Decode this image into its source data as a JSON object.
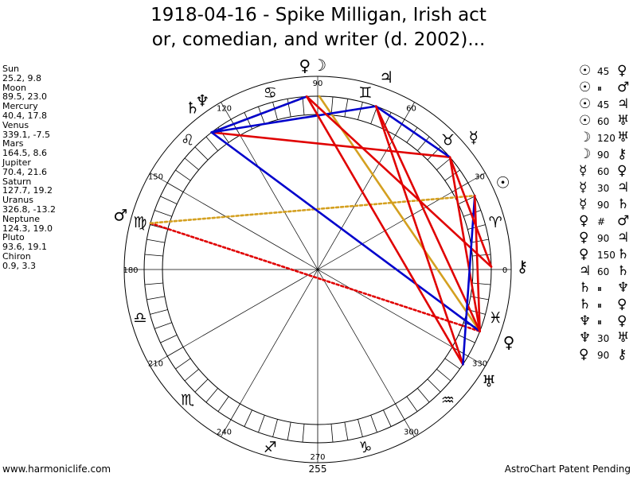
{
  "title": "1918-04-16 - Spike Milligan, Irish act\nor, comedian, and writer (d. 2002)...",
  "planets": [
    {
      "name": "Sun",
      "glyph": "☉",
      "lon": 25.2,
      "lat": 9.8,
      "coords": "25.2, 9.8"
    },
    {
      "name": "Moon",
      "glyph": "☽",
      "lon": 89.5,
      "lat": 23.0,
      "coords": "89.5, 23.0"
    },
    {
      "name": "Mercury",
      "glyph": "☿",
      "lon": 40.4,
      "lat": 17.8,
      "coords": "40.4, 17.8"
    },
    {
      "name": "Venus",
      "glyph": "♀",
      "lon": 339.1,
      "lat": -7.5,
      "coords": "339.1, -7.5"
    },
    {
      "name": "Mars",
      "glyph": "♂",
      "lon": 164.5,
      "lat": 8.6,
      "coords": "164.5, 8.6"
    },
    {
      "name": "Jupiter",
      "glyph": "♃",
      "lon": 70.4,
      "lat": 21.6,
      "coords": "70.4, 21.6"
    },
    {
      "name": "Saturn",
      "glyph": "♄",
      "lon": 127.7,
      "lat": 19.2,
      "coords": "127.7, 19.2"
    },
    {
      "name": "Uranus",
      "glyph": "♅",
      "lon": 326.8,
      "lat": -13.2,
      "coords": "326.8, -13.2"
    },
    {
      "name": "Neptune",
      "glyph": "♆",
      "lon": 124.3,
      "lat": 19.0,
      "coords": "124.3, 19.0"
    },
    {
      "name": "Pluto",
      "glyph": "♀",
      "lon": 93.6,
      "lat": 19.1,
      "coords": "93.6, 19.1"
    },
    {
      "name": "Chiron",
      "glyph": "⚷",
      "lon": 0.9,
      "lat": 3.3,
      "coords": "0.9, 3.3"
    }
  ],
  "aspects": [
    {
      "p1": "Sun",
      "p2": "Pluto",
      "g1": "☉",
      "aspect": "45",
      "g2": "♀",
      "color": "#0000ff"
    },
    {
      "p1": "Sun",
      "p2": "Mars",
      "g1": "☉",
      "aspect": "⏸",
      "g2": "♂",
      "color": "#e8a000"
    },
    {
      "p1": "Sun",
      "p2": "Jupiter",
      "g1": "☉",
      "aspect": "45",
      "g2": "♃",
      "color": "#0000ff"
    },
    {
      "p1": "Sun",
      "p2": "Uranus",
      "g1": "☉",
      "aspect": "60",
      "g2": "♅",
      "color": "#0000ff"
    },
    {
      "p1": "Moon",
      "p2": "Uranus",
      "g1": "☽",
      "aspect": "120",
      "g2": "♅",
      "color": "#0000ff"
    },
    {
      "p1": "Moon",
      "p2": "Chiron",
      "g1": "☽",
      "aspect": "90",
      "g2": "⚷",
      "color": "#ff0000"
    },
    {
      "p1": "Mercury",
      "p2": "Pluto",
      "g1": "☿",
      "aspect": "60",
      "g2": "♀",
      "color": "#0000ff"
    },
    {
      "p1": "Mercury",
      "p2": "Jupiter",
      "g1": "☿",
      "aspect": "30",
      "g2": "♃",
      "color": "#0000ff"
    },
    {
      "p1": "Mercury",
      "p2": "Saturn",
      "g1": "☿",
      "aspect": "90",
      "g2": "♄",
      "color": "#ff0000"
    },
    {
      "p1": "Venus",
      "p2": "Mars",
      "g1": "♀",
      "aspect": "#",
      "g2": "♂",
      "color": "#ff0000"
    },
    {
      "p1": "Venus",
      "p2": "Jupiter",
      "g1": "♀",
      "aspect": "90",
      "g2": "♃",
      "color": "#ff0000"
    },
    {
      "p1": "Venus",
      "p2": "Saturn",
      "g1": "♀",
      "aspect": "150",
      "g2": "♄",
      "color": "#0000ff"
    },
    {
      "p1": "Jupiter",
      "p2": "Saturn",
      "g1": "♃",
      "aspect": "60",
      "g2": "♄",
      "color": "#0000ff"
    },
    {
      "p1": "Saturn",
      "p2": "Neptune",
      "g1": "♄",
      "aspect": "⏸",
      "g2": "♆",
      "color": "#e8a000"
    },
    {
      "p1": "Saturn",
      "p2": "Pluto",
      "g1": "♄",
      "aspect": "⏸",
      "g2": "♀",
      "color": "#e8a000"
    },
    {
      "p1": "Neptune",
      "p2": "Pluto",
      "g1": "♆",
      "aspect": "⏸",
      "g2": "♀",
      "color": "#e8a000"
    },
    {
      "p1": "Neptune",
      "p2": "Uranus",
      "g1": "♆",
      "aspect": "30",
      "g2": "♅",
      "color": "#0000ff"
    },
    {
      "p1": "Pluto",
      "p2": "Chiron",
      "g1": "♀",
      "aspect": "90",
      "g2": "⚷",
      "color": "#ff0000"
    }
  ],
  "chart_lines": [
    {
      "from": "Moon",
      "to": "Venus",
      "color": "#d4a020",
      "style": "solid"
    },
    {
      "from": "Mars",
      "to": "Venus",
      "color": "#e00000",
      "style": "dotted"
    },
    {
      "from": "Mars",
      "to": "Sun",
      "color": "#d4a020",
      "style": "dotted"
    },
    {
      "from": "Saturn",
      "to": "Pluto",
      "color": "#d4a020",
      "style": "dotted"
    },
    {
      "from": "Saturn",
      "to": "Mercury",
      "color": "#e00000",
      "style": "solid"
    },
    {
      "from": "Saturn",
      "to": "Jupiter",
      "color": "#0000cc",
      "style": "solid"
    },
    {
      "from": "Saturn",
      "to": "Venus",
      "color": "#0000cc",
      "style": "solid"
    },
    {
      "from": "Pluto",
      "to": "Saturn",
      "color": "#0000cc",
      "style": "solid"
    },
    {
      "from": "Pluto",
      "to": "Chiron",
      "color": "#e00000",
      "style": "solid"
    },
    {
      "from": "Jupiter",
      "to": "Mercury",
      "color": "#0000cc",
      "style": "solid"
    },
    {
      "from": "Jupiter",
      "to": "Venus",
      "color": "#e00000",
      "style": "solid"
    },
    {
      "from": "Jupiter",
      "to": "Uranus",
      "color": "#e00000",
      "style": "solid"
    },
    {
      "from": "Pluto",
      "to": "Uranus",
      "color": "#e00000",
      "style": "solid"
    },
    {
      "from": "Mercury",
      "to": "Venus",
      "color": "#e00000",
      "style": "solid"
    },
    {
      "from": "Sun",
      "to": "Uranus",
      "color": "#0000cc",
      "style": "solid"
    },
    {
      "from": "Sun",
      "to": "Venus",
      "color": "#e00000",
      "style": "solid"
    },
    {
      "from": "Mercury",
      "to": "Chiron",
      "color": "#e00000",
      "style": "solid"
    }
  ],
  "chart_data": {
    "type": "astrological chart wheel",
    "date": "1918-04-16",
    "subject": "Spike Milligan, Irish actor, comedian, and writer (d. 2002)",
    "degree_labels": [
      "0",
      "30",
      "60",
      "90",
      "120",
      "150",
      "180",
      "210",
      "240",
      "270",
      "300",
      "330"
    ],
    "bottom_label": "255",
    "zodiac_signs": [
      {
        "glyph": "♈",
        "start": 0
      },
      {
        "glyph": "♉",
        "start": 30
      },
      {
        "glyph": "♊",
        "start": 60
      },
      {
        "glyph": "♋",
        "start": 90
      },
      {
        "glyph": "♌",
        "start": 120
      },
      {
        "glyph": "♍",
        "start": 150
      },
      {
        "glyph": "♎",
        "start": 180
      },
      {
        "glyph": "♏",
        "start": 210
      },
      {
        "glyph": "♐",
        "start": 240
      },
      {
        "glyph": "♑",
        "start": 270
      },
      {
        "glyph": "♒",
        "start": 300
      },
      {
        "glyph": "♓",
        "start": 330
      }
    ]
  },
  "footer": {
    "left": "www.harmoniclife.com",
    "right": "AstroChart Patent Pending"
  }
}
